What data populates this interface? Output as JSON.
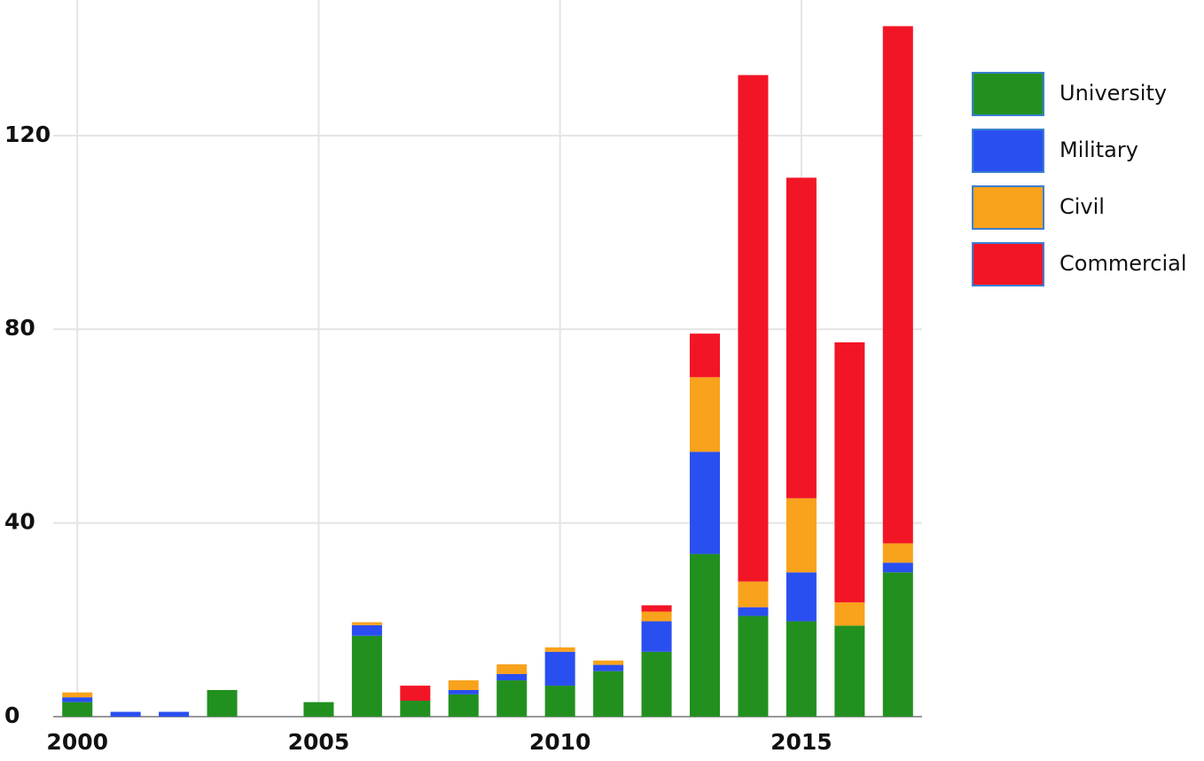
{
  "chart_data": {
    "type": "stacked_bar",
    "x": [
      2000,
      2001,
      2002,
      2003,
      2004,
      2005,
      2006,
      2007,
      2008,
      2009,
      2010,
      2011,
      2012,
      2013,
      2014,
      2015,
      2016,
      2017
    ],
    "series": [
      {
        "name": "University",
        "color": "#22901f",
        "values": [
          3,
          0,
          0,
          5.5,
          0,
          3,
          16.7,
          3.3,
          4.6,
          7.5,
          6.4,
          9.4,
          13.4,
          33.6,
          20.8,
          19.7,
          18.8,
          29.8
        ]
      },
      {
        "name": "Military",
        "color": "#2a4ff0",
        "values": [
          1,
          1,
          1,
          0,
          0,
          0,
          2.2,
          0,
          0.9,
          1.3,
          7.0,
          1.3,
          6.3,
          21.1,
          1.8,
          10.1,
          0,
          2.0
        ]
      },
      {
        "name": "Civil",
        "color": "#f9a21b",
        "values": [
          1,
          0,
          0,
          0,
          0,
          0,
          0.6,
          0,
          2.0,
          2.0,
          0.9,
          0.9,
          2.0,
          15.4,
          5.3,
          15.3,
          4.8,
          4.0
        ]
      },
      {
        "name": "Commercial",
        "color": "#f21526",
        "values": [
          0,
          0,
          0,
          0,
          0,
          0,
          0,
          3.1,
          0,
          0,
          0,
          0,
          1.3,
          9.0,
          104.6,
          66.2,
          53.7,
          106.8
        ]
      }
    ],
    "xlim": [
      1999.5,
      2017.5
    ],
    "xticks": [
      2000,
      2005,
      2010,
      2015
    ],
    "ylim": [
      0,
      148
    ],
    "yticks": [
      0,
      40,
      80,
      120
    ],
    "grid": true,
    "legend": "right"
  }
}
